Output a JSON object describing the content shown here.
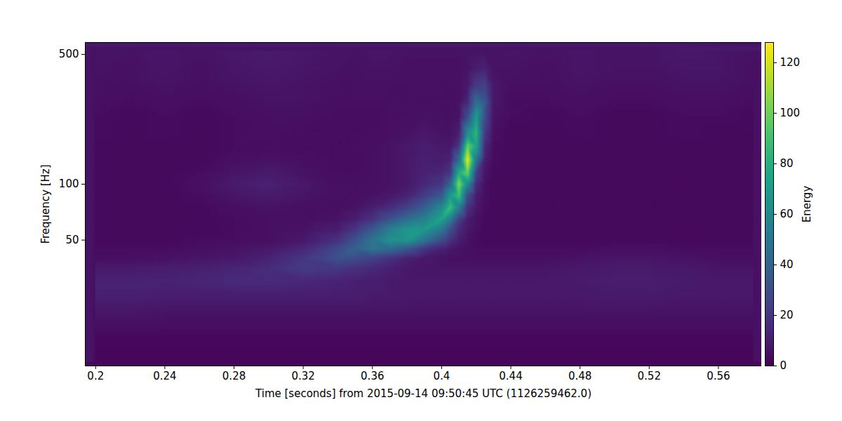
{
  "chart_data": {
    "type": "heatmap",
    "x_label": "Time [seconds] from 2015-09-14 09:50:45 UTC (1126259462.0)",
    "y_label": "Frequency [Hz]",
    "xlim": [
      0.194,
      0.585
    ],
    "ylim": [
      10.5,
      580
    ],
    "xticks": [
      0.2,
      0.24,
      0.28,
      0.32,
      0.36,
      0.4,
      0.44,
      0.48,
      0.52,
      0.56
    ],
    "yticks": [
      50,
      100,
      500
    ],
    "log": "y",
    "color": "viridis",
    "cells": {
      "x": [
        0.2,
        0.22,
        0.24,
        0.26,
        0.28,
        0.3,
        0.32,
        0.34,
        0.35,
        0.36,
        0.37,
        0.38,
        0.39,
        0.4,
        0.405,
        0.41,
        0.415,
        0.42,
        0.425,
        0.43,
        0.44,
        0.46,
        0.48,
        0.5,
        0.52,
        0.54,
        0.56,
        0.58
      ],
      "y": [
        11,
        15,
        20,
        25,
        30,
        35,
        40,
        45,
        50,
        57,
        65,
        75,
        87,
        100,
        115,
        135,
        160,
        190,
        230,
        280,
        340,
        420,
        520
      ],
      "values": [
        [
          2,
          2,
          2,
          2,
          2,
          2,
          2,
          2,
          2,
          2,
          2,
          2,
          2,
          2,
          2,
          2,
          2,
          2,
          2,
          2,
          2,
          2,
          2,
          2,
          2,
          2,
          2,
          2
        ],
        [
          3,
          3,
          3,
          3,
          3,
          3,
          3,
          3,
          3,
          3,
          3,
          3,
          3,
          3,
          3,
          3,
          3,
          3,
          3,
          3,
          3,
          3,
          3,
          3,
          3,
          3,
          3,
          3
        ],
        [
          7,
          7,
          6,
          6,
          6,
          6,
          6,
          6,
          6,
          6,
          6,
          6,
          6,
          6,
          6,
          6,
          6,
          6,
          6,
          6,
          6,
          6,
          6,
          6,
          6,
          6,
          6,
          6
        ],
        [
          11,
          11,
          10,
          10,
          10,
          10,
          10,
          10,
          10,
          9,
          9,
          8,
          8,
          8,
          8,
          8,
          8,
          8,
          8,
          8,
          8,
          8,
          8,
          9,
          9,
          8,
          8,
          8
        ],
        [
          12,
          12,
          12,
          13,
          15,
          15,
          14,
          12,
          11,
          10,
          9,
          8,
          8,
          8,
          8,
          8,
          8,
          8,
          8,
          8,
          8,
          8,
          9,
          10,
          10,
          9,
          8,
          8
        ],
        [
          9,
          9,
          10,
          11,
          13,
          16,
          22,
          20,
          17,
          14,
          11,
          8,
          7,
          7,
          7,
          7,
          7,
          7,
          7,
          7,
          7,
          7,
          8,
          9,
          9,
          8,
          7,
          7
        ],
        [
          5,
          5,
          6,
          7,
          8,
          12,
          20,
          32,
          30,
          25,
          18,
          12,
          8,
          6,
          5,
          5,
          5,
          5,
          5,
          5,
          5,
          5,
          6,
          7,
          7,
          6,
          5,
          5
        ],
        [
          4,
          4,
          4,
          5,
          6,
          8,
          14,
          28,
          40,
          50,
          45,
          35,
          20,
          12,
          8,
          6,
          5,
          4,
          4,
          4,
          4,
          4,
          4,
          5,
          5,
          4,
          4,
          4
        ],
        [
          3,
          3,
          3,
          4,
          4,
          5,
          8,
          18,
          32,
          50,
          65,
          68,
          50,
          30,
          18,
          10,
          6,
          4,
          3,
          3,
          3,
          3,
          3,
          3,
          3,
          3,
          3,
          3
        ],
        [
          3,
          3,
          3,
          3,
          4,
          5,
          6,
          10,
          20,
          35,
          55,
          68,
          68,
          50,
          30,
          15,
          8,
          5,
          3,
          3,
          3,
          3,
          3,
          3,
          3,
          3,
          3,
          3
        ],
        [
          3,
          3,
          3,
          3,
          4,
          5,
          5,
          6,
          10,
          18,
          32,
          45,
          55,
          75,
          55,
          25,
          10,
          5,
          3,
          3,
          3,
          3,
          3,
          3,
          3,
          3,
          3,
          3
        ],
        [
          3,
          3,
          3,
          3,
          5,
          6,
          5,
          5,
          6,
          10,
          16,
          25,
          38,
          60,
          88,
          55,
          18,
          8,
          4,
          3,
          3,
          3,
          3,
          3,
          3,
          3,
          3,
          3
        ],
        [
          3,
          3,
          3,
          4,
          7,
          9,
          7,
          5,
          5,
          6,
          8,
          12,
          22,
          35,
          70,
          90,
          30,
          10,
          5,
          3,
          3,
          3,
          3,
          3,
          3,
          3,
          3,
          3
        ],
        [
          3,
          3,
          3,
          5,
          9,
          12,
          8,
          5,
          5,
          5,
          6,
          8,
          14,
          20,
          40,
          105,
          60,
          15,
          5,
          3,
          3,
          3,
          3,
          3,
          3,
          3,
          3,
          3
        ],
        [
          3,
          3,
          3,
          4,
          7,
          9,
          6,
          4,
          4,
          5,
          6,
          8,
          12,
          14,
          20,
          80,
          100,
          25,
          7,
          3,
          3,
          3,
          3,
          3,
          3,
          3,
          3,
          3
        ],
        [
          3,
          3,
          3,
          3,
          5,
          6,
          5,
          4,
          4,
          5,
          6,
          8,
          11,
          10,
          12,
          45,
          125,
          50,
          10,
          4,
          3,
          3,
          3,
          3,
          3,
          3,
          3,
          3
        ],
        [
          3,
          3,
          3,
          3,
          4,
          4,
          4,
          4,
          4,
          5,
          6,
          8,
          10,
          8,
          8,
          20,
          100,
          75,
          14,
          4,
          3,
          3,
          3,
          3,
          3,
          3,
          3,
          3
        ],
        [
          4,
          3,
          4,
          3,
          4,
          5,
          4,
          4,
          4,
          4,
          5,
          6,
          8,
          6,
          6,
          10,
          60,
          85,
          22,
          5,
          3,
          3,
          4,
          3,
          3,
          4,
          3,
          3
        ],
        [
          4,
          3,
          4,
          3,
          4,
          5,
          5,
          4,
          4,
          4,
          5,
          5,
          6,
          5,
          5,
          6,
          30,
          70,
          30,
          6,
          4,
          3,
          4,
          3,
          3,
          4,
          4,
          3
        ],
        [
          5,
          4,
          5,
          4,
          5,
          6,
          6,
          5,
          5,
          5,
          5,
          5,
          5,
          5,
          5,
          5,
          14,
          45,
          35,
          8,
          4,
          4,
          5,
          4,
          4,
          5,
          5,
          4
        ],
        [
          5,
          5,
          6,
          5,
          6,
          7,
          6,
          5,
          5,
          5,
          5,
          5,
          5,
          5,
          5,
          5,
          8,
          22,
          25,
          8,
          5,
          5,
          6,
          5,
          5,
          6,
          6,
          5
        ],
        [
          6,
          5,
          7,
          5,
          7,
          8,
          7,
          6,
          5,
          6,
          6,
          5,
          5,
          5,
          5,
          5,
          6,
          10,
          12,
          6,
          6,
          5,
          7,
          6,
          6,
          7,
          7,
          5
        ],
        [
          6,
          6,
          7,
          6,
          8,
          9,
          8,
          6,
          6,
          7,
          7,
          6,
          6,
          6,
          6,
          6,
          6,
          6,
          6,
          6,
          7,
          6,
          7,
          6,
          6,
          8,
          7,
          6
        ]
      ]
    },
    "colorbar": {
      "label": "Energy",
      "range": [
        0,
        128
      ],
      "ticks": [
        0,
        20,
        40,
        60,
        80,
        100,
        120
      ]
    }
  }
}
